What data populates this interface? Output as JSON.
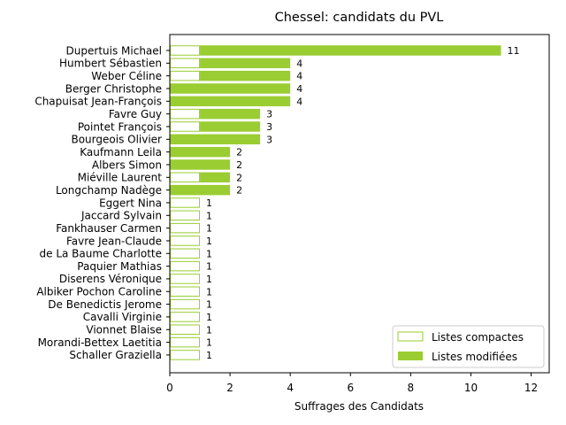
{
  "chart_data": {
    "type": "bar",
    "orientation": "horizontal",
    "stacked": true,
    "title": "Chessel: candidats du PVL",
    "xlabel": "Suffrages des Candidats",
    "ylabel": "",
    "xlim": [
      0,
      12.6
    ],
    "xticks": [
      0,
      2,
      4,
      6,
      8,
      10,
      12
    ],
    "grid": false,
    "legend_position": "bottom-right",
    "color": "#9acd32",
    "categories": [
      "Dupertuis Michael",
      "Humbert Sébastien",
      "Weber Céline",
      "Berger Christophe",
      "Chapuisat Jean-François",
      "Favre Guy",
      "Pointet François",
      "Bourgeois Olivier",
      "Kaufmann Leila",
      "Albers Simon",
      "Miéville Laurent",
      "Longchamp Nadège",
      "Eggert Nina",
      "Jaccard Sylvain",
      "Fankhauser Carmen",
      "Favre Jean-Claude",
      "de La Baume Charlotte",
      "Paquier Mathias",
      "Diserens Véronique",
      "Albiker Pochon Caroline",
      "De Benedictis Jerome",
      "Cavalli Virginie",
      "Vionnet Blaise",
      "Morandi-Bettex Laetitia",
      "Schaller Graziella"
    ],
    "series": [
      {
        "name": "Listes compactes",
        "style": "outline",
        "values": [
          1,
          1,
          1,
          0,
          0,
          1,
          1,
          0,
          0,
          0,
          1,
          0,
          1,
          1,
          1,
          1,
          1,
          1,
          1,
          1,
          1,
          1,
          1,
          1,
          1
        ]
      },
      {
        "name": "Listes modifiées",
        "style": "filled",
        "values": [
          10,
          3,
          3,
          4,
          4,
          2,
          2,
          3,
          2,
          2,
          1,
          2,
          0,
          0,
          0,
          0,
          0,
          0,
          0,
          0,
          0,
          0,
          0,
          0,
          0
        ]
      }
    ],
    "totals": [
      11,
      4,
      4,
      4,
      4,
      3,
      3,
      3,
      2,
      2,
      2,
      2,
      1,
      1,
      1,
      1,
      1,
      1,
      1,
      1,
      1,
      1,
      1,
      1,
      1
    ]
  }
}
